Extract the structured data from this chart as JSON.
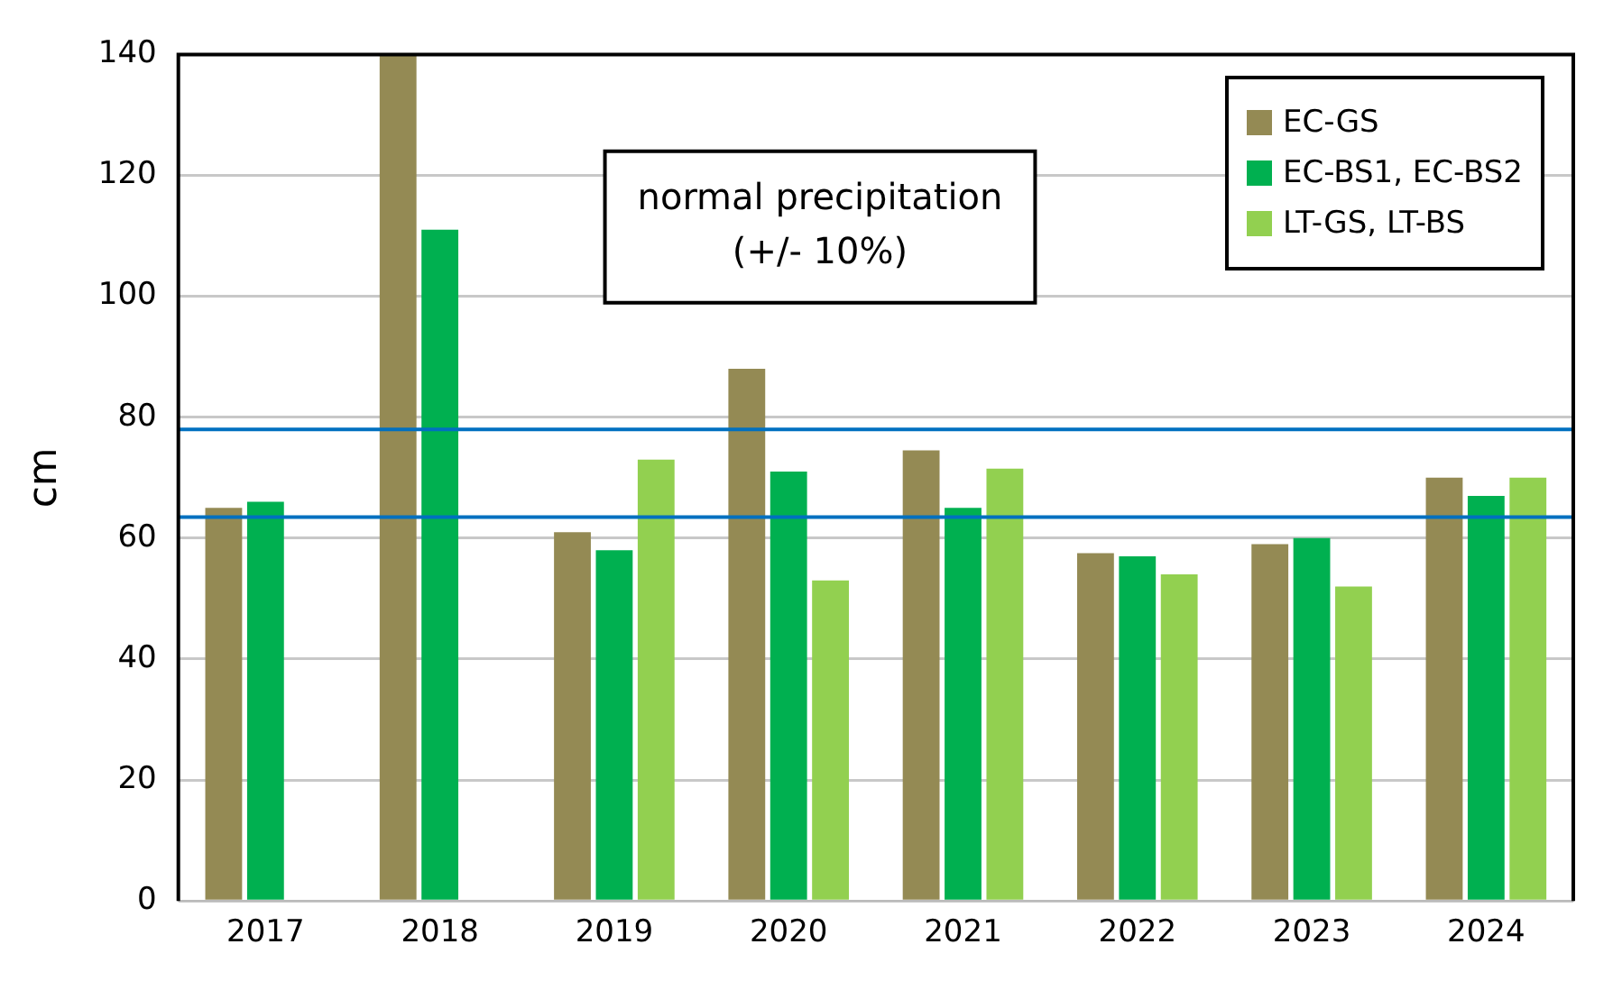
{
  "chart_data": {
    "type": "bar",
    "ylabel": "cm",
    "categories": [
      "2017",
      "2018",
      "2019",
      "2020",
      "2021",
      "2022",
      "2023",
      "2024"
    ],
    "series": [
      {
        "name": "EC-GS",
        "color": "#948a54",
        "values": [
          65,
          140,
          61,
          88,
          74.5,
          57.5,
          59,
          70
        ]
      },
      {
        "name": "EC-BS1, EC-BS2",
        "color": "#00b050",
        "values": [
          66,
          111,
          58,
          71,
          65,
          57,
          60,
          67
        ]
      },
      {
        "name": "LT-GS, LT-BS",
        "color": "#92d050",
        "values": [
          null,
          null,
          73,
          53,
          71.5,
          54,
          52,
          70
        ]
      }
    ],
    "ylim": [
      0,
      140
    ],
    "yticks": [
      0,
      20,
      40,
      60,
      80,
      100,
      120,
      140
    ],
    "grid": "y",
    "legend": "top right",
    "ref_lines": [
      {
        "axis": "y",
        "value": 63.5,
        "color": "#0070c0"
      },
      {
        "axis": "y",
        "value": 78,
        "color": "#0070c0"
      }
    ],
    "annotations": [
      "normal precipitation\n(+/- 10%)"
    ]
  }
}
